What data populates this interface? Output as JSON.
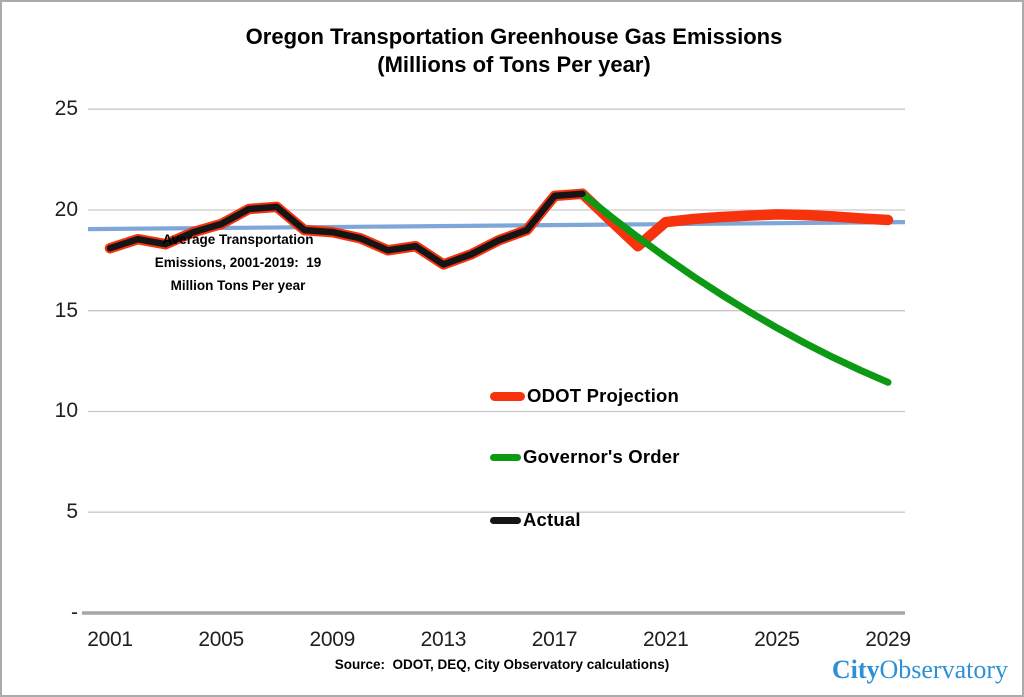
{
  "header": {
    "title": "Oregon Transportation Greenhouse Gas Emissions",
    "subtitle": "(Millions of Tons Per year)"
  },
  "annotation": {
    "lines": [
      "Average Transportation",
      "Emissions, 2001-2019:  19",
      "Million Tons Per year"
    ]
  },
  "legend": {
    "items": [
      {
        "label": "ODOT Projection",
        "color": "#f6330d"
      },
      {
        "label": "Governor's Order",
        "color": "#0c9a14"
      },
      {
        "label": "Actual",
        "color": "#151515"
      }
    ]
  },
  "footer": {
    "source": "Source:  ODOT, DEQ, City Observatory calculations)",
    "logo_city": "City",
    "logo_observatory": "Observatory",
    "logo_color": "#2e90d6"
  },
  "chart_data": {
    "type": "line",
    "title": "Oregon Transportation Greenhouse Gas Emissions",
    "subtitle": "(Millions of Tons Per year)",
    "xlabel": "",
    "ylabel": "",
    "xlim": [
      2001,
      2029
    ],
    "ylim": [
      0,
      25
    ],
    "grid": true,
    "x_ticks": [
      2001,
      2005,
      2009,
      2013,
      2017,
      2021,
      2025,
      2029
    ],
    "y_ticks": [
      {
        "label": "25",
        "value": 25
      },
      {
        "label": "20",
        "value": 20
      },
      {
        "label": "15",
        "value": 15
      },
      {
        "label": "10",
        "value": 10
      },
      {
        "label": "5",
        "value": 5
      },
      {
        "label": "-",
        "value": 0
      }
    ],
    "annotation": "Average Transportation Emissions, 2001-2019: 19 Million Tons Per year",
    "legend_position": "center-right, stacked inside plot",
    "series": [
      {
        "name": "Actual",
        "color": "#151515",
        "outline_color": "#f6330d",
        "start_year": 2001,
        "values": [
          18.1,
          18.55,
          18.3,
          18.9,
          19.3,
          20.05,
          20.15,
          19.0,
          18.9,
          18.6,
          18.0,
          18.2,
          17.3,
          17.8,
          18.5,
          19.0,
          20.7,
          20.8
        ]
      },
      {
        "name": "ODOT Projection",
        "color": "#f6330d",
        "start_year": 2018,
        "values": [
          20.8,
          19.5,
          18.2,
          19.4,
          19.55,
          19.65,
          19.72,
          19.78,
          19.75,
          19.68,
          19.58,
          19.5
        ]
      },
      {
        "name": "Governor's Order",
        "color": "#0c9a14",
        "start_year": 2018,
        "values": [
          20.8,
          19.7,
          18.65,
          17.65,
          16.7,
          15.8,
          14.95,
          14.15,
          13.4,
          12.7,
          12.05,
          11.45
        ]
      }
    ],
    "trendline": {
      "name": "Average 2001-2019 level",
      "color": "#7ea6d8",
      "start": {
        "year": 2001,
        "value": 19.05
      },
      "end": {
        "year": 2029,
        "value": 19.4
      }
    }
  }
}
